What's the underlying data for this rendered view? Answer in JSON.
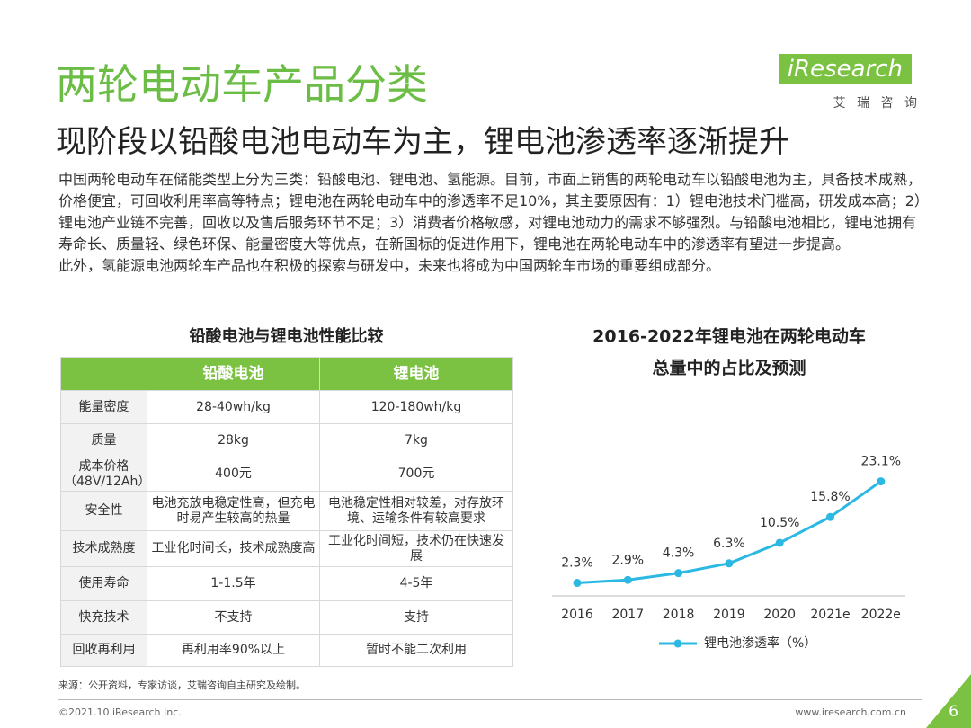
{
  "header": {
    "title": "两轮电动车产品分类",
    "subtitle": "现阶段以铅酸电池电动车为主，锂电池渗透率逐渐提升",
    "logo": "iResearch",
    "logo_cn": "艾 瑞 咨 询"
  },
  "body": {
    "paragraphs": [
      "中国两轮电动车在储能类型上分为三类：铅酸电池、锂电池、氢能源。目前，市面上销售的两轮电动车以铅酸电池为主，具备技术成熟，价格便宜，可回收利用率高等特点；锂电池在两轮电动车中的渗透率不足10%，其主要原因有：1）锂电池技术门槛高，研发成本高；2）锂电池产业链不完善，回收以及售后服务环节不足；3）消费者价格敏感，对锂电池动力的需求不够强烈。与铅酸电池相比，锂电池拥有寿命长、质量轻、绿色环保、能量密度大等优点，在新国标的促进作用下，锂电池在两轮电动车中的渗透率有望进一步提高。",
      "此外，氢能源电池两轮车产品也在积极的探索与研发中，未来也将成为中国两轮车市场的重要组成部分。"
    ]
  },
  "table": {
    "title": "铅酸电池与锂电池性能比较",
    "columns": [
      "铅酸电池",
      "锂电池"
    ],
    "rows": [
      {
        "label": "能量密度",
        "cells": [
          "28-40wh/kg",
          "120-180wh/kg"
        ]
      },
      {
        "label": "质量",
        "cells": [
          "28kg",
          "7kg"
        ]
      },
      {
        "label": "成本价格（48V/12Ah）",
        "cells": [
          "400元",
          "700元"
        ]
      },
      {
        "label": "安全性",
        "cells": [
          "电池充放电稳定性高，但充电时易产生较高的热量",
          "电池稳定性相对较差，对存放环境、运输条件有较高要求"
        ]
      },
      {
        "label": "技术成熟度",
        "cells": [
          "工业化时间长，技术成熟度高",
          "工业化时间短，技术仍在快速发展"
        ]
      },
      {
        "label": "使用寿命",
        "cells": [
          "1-1.5年",
          "4-5年"
        ]
      },
      {
        "label": "快充技术",
        "cells": [
          "不支持",
          "支持"
        ]
      },
      {
        "label": "回收再利用",
        "cells": [
          "再利用率90%以上",
          "暂时不能二次利用"
        ]
      }
    ]
  },
  "chart_data": {
    "type": "line",
    "title": [
      "2016-2022年锂电池在两轮电动车",
      "总量中的占比及预测"
    ],
    "categories": [
      "2016",
      "2017",
      "2018",
      "2019",
      "2020",
      "2021e",
      "2022e"
    ],
    "series": [
      {
        "name": "锂电池渗透率（%）",
        "color": "#2bb8e2",
        "values": [
          2.3,
          2.9,
          4.3,
          6.3,
          10.5,
          15.8,
          23.1
        ],
        "value_labels": [
          "2.3%",
          "2.9%",
          "4.3%",
          "6.3%",
          "10.5%",
          "15.8%",
          "23.1%"
        ]
      }
    ]
  },
  "source": "来源：公开资料，专家访谈，艾瑞咨询自主研究及绘制。",
  "footer": {
    "copyright": "©2021.10 iResearch Inc.",
    "url": "www.iresearch.com.cn",
    "page": 6
  }
}
